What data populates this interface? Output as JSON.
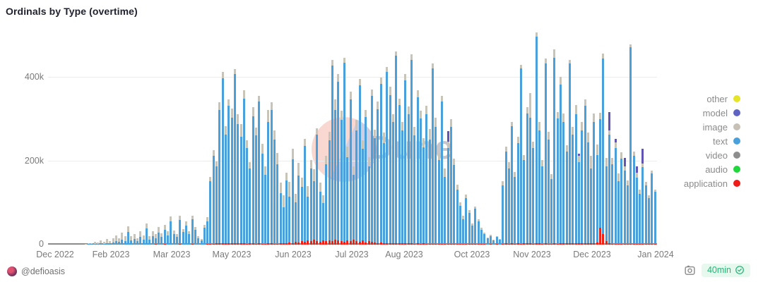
{
  "header": {
    "title": "Ordinals by Type (overtime)"
  },
  "watermark": {
    "text": "Dune"
  },
  "legend": {
    "items": [
      {
        "label": "other",
        "color": "#e6e426"
      },
      {
        "label": "model",
        "color": "#5f63c2"
      },
      {
        "label": "image",
        "color": "#c6c1b4"
      },
      {
        "label": "text",
        "color": "#4aa0da"
      },
      {
        "label": "video",
        "color": "#8e8e8e"
      },
      {
        "label": "audio",
        "color": "#21d73e"
      },
      {
        "label": "application",
        "color": "#ef1c17"
      }
    ]
  },
  "footer": {
    "author": "@defioasis",
    "refresh_age": "40min"
  },
  "chart_data": {
    "type": "bar",
    "stacked": true,
    "title": "Ordinals by Type (overtime)",
    "x_axis": {
      "tick_labels": [
        "Dec 2022",
        "Feb 2023",
        "Mar 2023",
        "May 2023",
        "Jun 2023",
        "Jul 2023",
        "Aug 2023",
        "Oct 2023",
        "Nov 2023",
        "Dec 2023",
        "Jan 2024"
      ]
    },
    "y_axis": {
      "tick_labels": [
        "0",
        "200k",
        "400k"
      ],
      "max": 520000,
      "unit_per_value": 1000
    },
    "series_colors": {
      "other": "#e6e426",
      "model": "#6055b5",
      "image": "#c9c4b8",
      "text": "#4aa0da",
      "video": "#8e8e8e",
      "audio": "#21d73e",
      "application": "#ed2115"
    },
    "negligible_series": [
      "other",
      "video",
      "audio"
    ],
    "stack_order_bottom_to_top": [
      "application",
      "text",
      "image",
      "model"
    ],
    "bar_columns": [
      "text",
      "image",
      "application",
      "model"
    ],
    "values_unit": "thousands of inscriptions per day",
    "bars": [
      [
        0,
        0,
        0,
        0
      ],
      [
        0,
        0,
        0,
        0
      ],
      [
        0,
        0,
        0,
        0
      ],
      [
        0,
        0,
        0,
        0
      ],
      [
        0,
        0,
        0,
        0
      ],
      [
        0,
        0,
        0,
        0
      ],
      [
        0,
        0,
        0,
        0
      ],
      [
        0,
        0,
        0,
        0
      ],
      [
        0,
        0,
        0,
        0
      ],
      [
        0,
        0,
        0,
        0
      ],
      [
        0,
        0,
        0,
        0
      ],
      [
        0,
        0,
        0,
        0
      ],
      [
        0,
        2,
        0,
        0
      ],
      [
        1,
        3,
        0,
        0
      ],
      [
        1,
        2,
        0,
        0
      ],
      [
        2,
        5,
        0,
        0
      ],
      [
        1,
        4,
        0,
        0
      ],
      [
        3,
        7,
        0,
        0
      ],
      [
        2,
        5,
        0,
        0
      ],
      [
        4,
        9,
        0,
        0
      ],
      [
        3,
        6,
        0,
        0
      ],
      [
        5,
        10,
        0,
        0
      ],
      [
        8,
        14,
        0,
        0
      ],
      [
        6,
        9,
        0,
        0
      ],
      [
        12,
        16,
        0,
        0
      ],
      [
        9,
        12,
        0,
        0
      ],
      [
        30,
        14,
        0,
        0
      ],
      [
        10,
        10,
        0,
        0
      ],
      [
        14,
        12,
        0,
        0
      ],
      [
        8,
        8,
        0,
        0
      ],
      [
        18,
        14,
        0,
        0
      ],
      [
        12,
        10,
        0,
        0
      ],
      [
        38,
        12,
        0,
        0
      ],
      [
        12,
        9,
        0,
        0
      ],
      [
        20,
        12,
        0,
        0
      ],
      [
        15,
        10,
        1,
        0
      ],
      [
        28,
        14,
        0,
        0
      ],
      [
        18,
        9,
        0,
        0
      ],
      [
        35,
        12,
        1,
        0
      ],
      [
        22,
        10,
        0,
        0
      ],
      [
        55,
        12,
        0,
        0
      ],
      [
        25,
        9,
        0,
        0
      ],
      [
        18,
        8,
        0,
        0
      ],
      [
        58,
        10,
        1,
        0
      ],
      [
        30,
        8,
        0,
        0
      ],
      [
        45,
        10,
        0,
        0
      ],
      [
        25,
        7,
        0,
        0
      ],
      [
        60,
        9,
        1,
        0
      ],
      [
        35,
        8,
        0,
        0
      ],
      [
        15,
        5,
        0,
        0
      ],
      [
        10,
        4,
        0,
        0
      ],
      [
        40,
        8,
        0,
        0
      ],
      [
        55,
        10,
        1,
        0
      ],
      [
        150,
        10,
        2,
        0
      ],
      [
        210,
        15,
        2,
        0
      ],
      [
        185,
        12,
        3,
        0
      ],
      [
        320,
        18,
        3,
        0
      ],
      [
        395,
        15,
        4,
        0
      ],
      [
        260,
        20,
        3,
        0
      ],
      [
        330,
        15,
        3,
        0
      ],
      [
        300,
        22,
        4,
        0
      ],
      [
        405,
        12,
        4,
        0
      ],
      [
        285,
        25,
        3,
        0
      ],
      [
        255,
        30,
        3,
        0
      ],
      [
        345,
        20,
        4,
        0
      ],
      [
        230,
        18,
        2,
        0
      ],
      [
        180,
        15,
        3,
        0
      ],
      [
        305,
        22,
        3,
        0
      ],
      [
        260,
        18,
        2,
        0
      ],
      [
        340,
        14,
        3,
        0
      ],
      [
        215,
        25,
        2,
        0
      ],
      [
        165,
        20,
        2,
        0
      ],
      [
        290,
        30,
        3,
        0
      ],
      [
        320,
        18,
        3,
        0
      ],
      [
        250,
        22,
        2,
        0
      ],
      [
        190,
        28,
        2,
        0
      ],
      [
        120,
        25,
        3,
        0
      ],
      [
        85,
        30,
        4,
        0
      ],
      [
        150,
        20,
        3,
        0
      ],
      [
        110,
        35,
        5,
        0
      ],
      [
        200,
        25,
        4,
        0
      ],
      [
        95,
        20,
        6,
        0
      ],
      [
        160,
        30,
        5,
        0
      ],
      [
        130,
        22,
        8,
        0
      ],
      [
        230,
        18,
        6,
        0
      ],
      [
        105,
        25,
        10,
        0
      ],
      [
        175,
        20,
        8,
        0
      ],
      [
        140,
        28,
        12,
        0
      ],
      [
        255,
        15,
        8,
        0
      ],
      [
        120,
        22,
        6,
        0
      ],
      [
        90,
        18,
        10,
        0
      ],
      [
        185,
        20,
        8,
        0
      ],
      [
        240,
        20,
        10,
        0
      ],
      [
        420,
        15,
        8,
        0
      ],
      [
        310,
        25,
        12,
        0
      ],
      [
        380,
        18,
        10,
        0
      ],
      [
        290,
        22,
        8,
        0
      ],
      [
        430,
        12,
        6,
        0
      ],
      [
        200,
        25,
        10,
        0
      ],
      [
        340,
        18,
        8,
        0
      ],
      [
        155,
        20,
        12,
        0
      ],
      [
        265,
        25,
        8,
        0
      ],
      [
        375,
        15,
        6,
        0
      ],
      [
        220,
        20,
        10,
        0
      ],
      [
        300,
        18,
        5,
        0
      ],
      [
        180,
        22,
        8,
        0
      ],
      [
        350,
        15,
        6,
        0
      ],
      [
        250,
        20,
        5,
        0
      ],
      [
        320,
        18,
        4,
        0
      ],
      [
        380,
        15,
        5,
        0
      ],
      [
        240,
        25,
        3,
        0
      ],
      [
        410,
        12,
        4,
        0
      ],
      [
        355,
        20,
        3,
        0
      ],
      [
        290,
        18,
        4,
        0
      ],
      [
        450,
        10,
        3,
        0
      ],
      [
        330,
        15,
        4,
        0
      ],
      [
        270,
        20,
        3,
        0
      ],
      [
        390,
        14,
        4,
        0
      ],
      [
        310,
        18,
        3,
        0
      ],
      [
        440,
        12,
        3,
        0
      ],
      [
        260,
        20,
        2,
        0
      ],
      [
        350,
        16,
        3,
        0
      ],
      [
        300,
        18,
        2,
        0
      ],
      [
        230,
        22,
        3,
        0
      ],
      [
        310,
        20,
        2,
        0
      ],
      [
        250,
        25,
        2,
        0
      ],
      [
        420,
        12,
        2,
        0
      ],
      [
        280,
        22,
        2,
        0
      ],
      [
        200,
        18,
        2,
        0
      ],
      [
        340,
        15,
        2,
        0
      ],
      [
        160,
        20,
        2,
        0
      ],
      [
        230,
        15,
        2,
        25
      ],
      [
        280,
        18,
        2,
        0
      ],
      [
        190,
        15,
        1,
        0
      ],
      [
        130,
        12,
        1,
        0
      ],
      [
        90,
        10,
        2,
        0
      ],
      [
        60,
        8,
        1,
        0
      ],
      [
        110,
        8,
        2,
        0
      ],
      [
        75,
        6,
        1,
        0
      ],
      [
        45,
        5,
        1,
        0
      ],
      [
        85,
        6,
        1,
        0
      ],
      [
        55,
        4,
        1,
        0
      ],
      [
        35,
        4,
        1,
        0
      ],
      [
        25,
        3,
        1,
        0
      ],
      [
        15,
        2,
        0,
        0
      ],
      [
        20,
        3,
        1,
        0
      ],
      [
        10,
        2,
        0,
        0
      ],
      [
        18,
        2,
        1,
        0
      ],
      [
        12,
        2,
        0,
        0
      ],
      [
        140,
        10,
        2,
        0
      ],
      [
        220,
        12,
        3,
        0
      ],
      [
        180,
        15,
        2,
        0
      ],
      [
        280,
        10,
        3,
        0
      ],
      [
        160,
        12,
        2,
        0
      ],
      [
        240,
        15,
        3,
        0
      ],
      [
        420,
        8,
        2,
        0
      ],
      [
        200,
        12,
        3,
        0
      ],
      [
        310,
        15,
        4,
        0
      ],
      [
        300,
        60,
        3,
        0
      ],
      [
        230,
        15,
        2,
        0
      ],
      [
        495,
        10,
        3,
        0
      ],
      [
        270,
        20,
        3,
        0
      ],
      [
        185,
        15,
        2,
        0
      ],
      [
        430,
        12,
        3,
        0
      ],
      [
        250,
        18,
        2,
        0
      ],
      [
        155,
        12,
        2,
        0
      ],
      [
        445,
        20,
        3,
        0
      ],
      [
        300,
        15,
        2,
        0
      ],
      [
        380,
        18,
        3,
        0
      ],
      [
        290,
        20,
        4,
        0
      ],
      [
        220,
        15,
        3,
        0
      ],
      [
        430,
        10,
        3,
        0
      ],
      [
        260,
        18,
        4,
        0
      ],
      [
        310,
        22,
        3,
        0
      ],
      [
        195,
        15,
        3,
        5
      ],
      [
        270,
        20,
        4,
        0
      ],
      [
        330,
        15,
        3,
        0
      ],
      [
        240,
        25,
        4,
        0
      ],
      [
        180,
        30,
        3,
        0
      ],
      [
        290,
        20,
        4,
        0
      ],
      [
        210,
        25,
        5,
        0
      ],
      [
        260,
        15,
        40,
        0
      ],
      [
        420,
        12,
        25,
        0
      ],
      [
        180,
        20,
        8,
        0
      ],
      [
        260,
        10,
        3,
        45
      ],
      [
        190,
        15,
        2,
        0
      ],
      [
        230,
        12,
        2,
        10
      ],
      [
        150,
        18,
        2,
        0
      ],
      [
        205,
        15,
        1,
        0
      ],
      [
        175,
        10,
        2,
        20
      ],
      [
        140,
        12,
        1,
        0
      ],
      [
        470,
        8,
        2,
        0
      ],
      [
        210,
        10,
        2,
        0
      ],
      [
        160,
        12,
        1,
        15
      ],
      [
        120,
        10,
        1,
        0
      ],
      [
        185,
        8,
        1,
        35
      ],
      [
        140,
        10,
        1,
        0
      ],
      [
        110,
        8,
        1,
        0
      ],
      [
        170,
        6,
        1,
        0
      ],
      [
        125,
        5,
        1,
        0
      ]
    ]
  }
}
